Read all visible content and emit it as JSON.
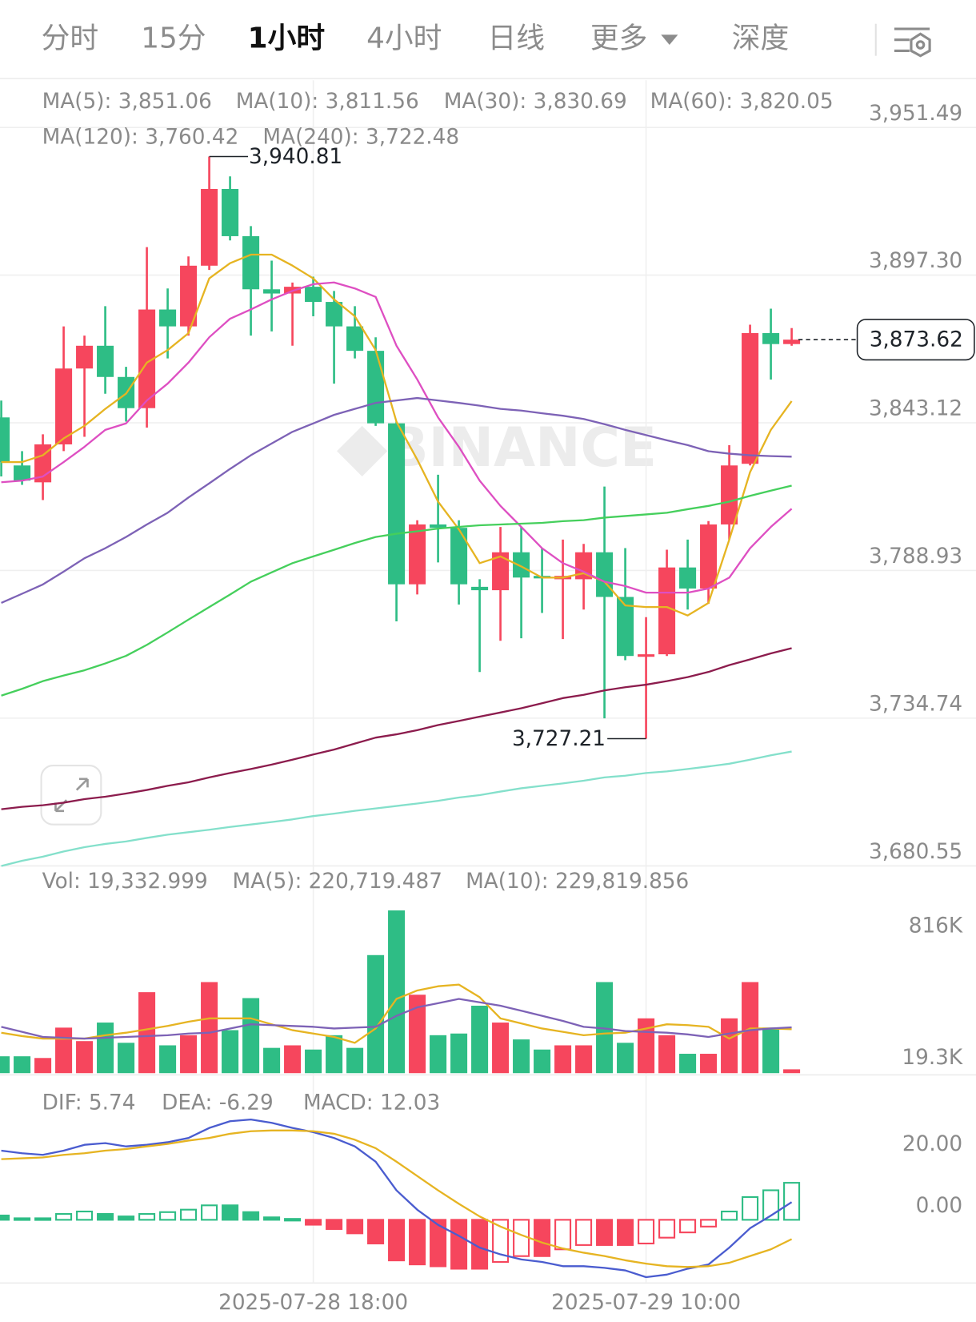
{
  "tabs": [
    "分时",
    "15分",
    "1小时",
    "4小时",
    "日线",
    "更多",
    "深度"
  ],
  "active_tab": 2,
  "watermark": "BINANCE",
  "chart_data": [
    {
      "type": "candlestick",
      "categories": [
        null,
        null,
        null,
        null,
        null,
        null,
        null,
        null,
        null,
        null,
        null,
        null,
        null,
        null,
        null,
        "2025-07-28 18:00",
        null,
        null,
        null,
        null,
        null,
        null,
        null,
        null,
        null,
        null,
        null,
        null,
        null,
        null,
        null,
        "2025-07-29 10:00",
        null,
        null,
        null,
        null,
        null,
        null,
        null
      ],
      "open": [
        3845.09,
        3827.46,
        3821.27,
        3835.19,
        3863.03,
        3871.38,
        3859.93,
        3848.49,
        3884.68,
        3878.49,
        3900.76,
        3928.91,
        3911.59,
        3892.1,
        3890.55,
        3893.03,
        3887.46,
        3878.49,
        3869.52,
        3842.92,
        3783.85,
        3805.81,
        3804.57,
        3782.92,
        3781.68,
        3795.6,
        3786.94,
        3785.7,
        3785.7,
        3795.6,
        3779.21,
        3757.25,
        3758.17,
        3790.03,
        3782.3,
        3805.81,
        3828.07,
        3876.02,
        3872.0
      ],
      "high": [
        3851.27,
        3832.71,
        3838.9,
        3878.49,
        3875.09,
        3885.91,
        3863.64,
        3907.57,
        3892.41,
        3904.16,
        3940.81,
        3933.55,
        3915.3,
        3902.62,
        3894.57,
        3896.74,
        3891.48,
        3885.91,
        3874.47,
        3843.54,
        3807.35,
        3824.05,
        3807.35,
        3785.7,
        3804.88,
        3804.88,
        3797.14,
        3800.24,
        3798.69,
        3819.72,
        3797.14,
        3771.78,
        3796.53,
        3800.24,
        3807.04,
        3834.88,
        3879.11,
        3884.99,
        3877.87
      ],
      "low": [
        3823.44,
        3820.34,
        3814.78,
        3832.71,
        3837.97,
        3853.75,
        3843.54,
        3841.37,
        3866.74,
        3875.09,
        3899.21,
        3910.04,
        3875.09,
        3876.64,
        3871.38,
        3882.2,
        3857.46,
        3866.74,
        3841.99,
        3770.24,
        3780.13,
        3791.89,
        3776.42,
        3751.68,
        3763.12,
        3764.05,
        3773.33,
        3763.74,
        3774.57,
        3734.67,
        3756.01,
        3727.21,
        3757.55,
        3774.57,
        3776.73,
        3800.24,
        3827.46,
        3859.0,
        3871.38
      ],
      "close": [
        3828.69,
        3821.89,
        3835.19,
        3863.03,
        3871.38,
        3859.93,
        3848.49,
        3884.68,
        3878.49,
        3900.76,
        3928.91,
        3911.59,
        3892.1,
        3890.55,
        3893.03,
        3887.46,
        3878.49,
        3869.52,
        3842.92,
        3783.85,
        3805.81,
        3804.57,
        3783.85,
        3781.68,
        3795.6,
        3786.32,
        3786.01,
        3786.94,
        3795.6,
        3779.21,
        3757.55,
        3758.17,
        3790.03,
        3782.3,
        3805.81,
        3827.46,
        3876.02,
        3872.0,
        3873.62
      ],
      "up_color": "#f6465d",
      "down_color": "#2ebd85",
      "ylim": [
        3680.55,
        3968.8
      ],
      "yticks": [
        {
          "value": 3951.49,
          "label": "3,951.49"
        },
        {
          "value": 3897.3,
          "label": "3,897.30"
        },
        {
          "value": 3843.12,
          "label": "3,843.12"
        },
        {
          "value": 3788.93,
          "label": "3,788.93"
        },
        {
          "value": 3734.74,
          "label": "3,734.74"
        },
        {
          "value": 3680.55,
          "label": "3,680.55"
        }
      ],
      "grid": true,
      "high_label": "3,940.81",
      "low_label": "3,727.21",
      "last_label": "3,873.62",
      "series": [
        {
          "name": "MA(5): 3,851.06",
          "color": "#e6b422",
          "values": [
            3828.7,
            3828.7,
            3831.2,
            3837.4,
            3842.0,
            3848.2,
            3853.8,
            3865.2,
            3869.8,
            3876.0,
            3896.1,
            3901.7,
            3904.8,
            3904.8,
            3900.8,
            3896.1,
            3888.4,
            3882.2,
            3869.8,
            3843.5,
            3829.6,
            3814.2,
            3804.0,
            3791.6,
            3794.1,
            3790.4,
            3786.3,
            3786.3,
            3787.9,
            3784.8,
            3776.1,
            3775.5,
            3775.5,
            3772.4,
            3777.0,
            3800.2,
            3825.0,
            3840.5,
            3851.06
          ]
        },
        {
          "name": "MA(10): 3,811.56",
          "color": "#de4fc2",
          "values": [
            3821.3,
            3821.9,
            3823.4,
            3828.7,
            3834.3,
            3840.5,
            3842.9,
            3851.3,
            3857.5,
            3865.2,
            3874.5,
            3881.3,
            3884.7,
            3888.4,
            3891.5,
            3894.0,
            3894.6,
            3892.4,
            3889.3,
            3871.4,
            3859.0,
            3845.1,
            3834.3,
            3821.9,
            3812.6,
            3804.9,
            3797.1,
            3791.6,
            3788.5,
            3784.8,
            3783.2,
            3780.8,
            3780.8,
            3780.8,
            3782.3,
            3786.3,
            3797.1,
            3804.9,
            3811.56
          ]
        },
        {
          "name": "MA(30): 3,830.69",
          "color": "#7d62b6",
          "values": [
            3777.0,
            3780.4,
            3783.8,
            3788.5,
            3793.4,
            3797.1,
            3801.2,
            3805.8,
            3810.1,
            3815.7,
            3820.9,
            3826.2,
            3831.2,
            3835.5,
            3839.8,
            3842.9,
            3846.0,
            3848.2,
            3850.4,
            3851.3,
            3852.2,
            3851.3,
            3850.4,
            3849.4,
            3848.2,
            3847.6,
            3846.6,
            3845.7,
            3844.5,
            3842.6,
            3840.5,
            3838.6,
            3836.7,
            3834.9,
            3832.7,
            3831.8,
            3831.2,
            3830.9,
            3830.69
          ]
        },
        {
          "name": "MA(60): 3,820.05",
          "color": "#45cf5c",
          "values": [
            3743.0,
            3745.5,
            3748.3,
            3750.4,
            3752.3,
            3754.8,
            3757.6,
            3761.6,
            3766.2,
            3770.9,
            3775.5,
            3780.1,
            3784.8,
            3788.2,
            3791.6,
            3794.1,
            3796.5,
            3799.0,
            3801.2,
            3802.4,
            3803.3,
            3804.3,
            3804.9,
            3805.5,
            3805.8,
            3806.1,
            3806.4,
            3807.0,
            3807.4,
            3808.3,
            3808.9,
            3809.5,
            3810.1,
            3811.4,
            3812.6,
            3814.2,
            3816.3,
            3818.2,
            3820.05
          ]
        },
        {
          "name": "MA(120): 3,760.42",
          "color": "#8c1c4d",
          "values": [
            3701.3,
            3702.2,
            3702.8,
            3703.7,
            3705.0,
            3705.9,
            3707.1,
            3708.4,
            3709.9,
            3711.2,
            3713.0,
            3714.6,
            3716.1,
            3717.7,
            3719.5,
            3721.4,
            3723.2,
            3725.4,
            3727.6,
            3728.8,
            3730.3,
            3732.2,
            3733.7,
            3735.3,
            3736.8,
            3738.4,
            3740.2,
            3742.1,
            3743.3,
            3744.9,
            3746.1,
            3747.0,
            3748.3,
            3749.8,
            3751.7,
            3754.2,
            3756.3,
            3758.5,
            3760.42
          ]
        },
        {
          "name": "MA(240): 3,722.48",
          "color": "#84e0cb",
          "values": [
            3680.5,
            3682.4,
            3683.9,
            3685.8,
            3687.4,
            3688.6,
            3689.5,
            3690.8,
            3692.0,
            3692.9,
            3693.8,
            3694.8,
            3695.7,
            3696.6,
            3697.6,
            3698.8,
            3699.7,
            3700.7,
            3701.6,
            3702.5,
            3703.4,
            3704.4,
            3705.6,
            3706.5,
            3707.8,
            3709.0,
            3709.9,
            3710.8,
            3711.8,
            3713.0,
            3713.6,
            3714.6,
            3715.2,
            3716.1,
            3717.0,
            3718.0,
            3719.5,
            3721.1,
            3722.48
          ]
        }
      ]
    },
    {
      "type": "bar",
      "name": "Vol: 19,332.999",
      "values": [
        84600,
        84600,
        76100,
        228300,
        160700,
        253700,
        152200,
        405900,
        139500,
        190300,
        456600,
        215600,
        376300,
        126800,
        139500,
        118400,
        190300,
        126800,
        591900,
        816000,
        393200,
        190300,
        198700,
        338200,
        253700,
        169100,
        118400,
        139500,
        139500,
        456600,
        152200,
        274800,
        190300,
        97200,
        97200,
        274800,
        456600,
        228300,
        19332.999
      ],
      "ylim": [
        0,
        900000
      ],
      "yticks": [
        {
          "value": 816000,
          "label": "816K"
        },
        {
          "value": 19300,
          "label": "19.3K"
        }
      ],
      "grid": false,
      "series": [
        {
          "name": "MA(5): 220,719.487",
          "color": "#e6b422",
          "values": [
            202900,
            186000,
            173300,
            173300,
            173300,
            190300,
            202900,
            219900,
            236800,
            257900,
            274800,
            274800,
            274800,
            245200,
            215600,
            198700,
            181800,
            152200,
            224100,
            372100,
            414300,
            435500,
            443900,
            380500,
            274800,
            249500,
            224100,
            207200,
            190300,
            198700,
            202900,
            224100,
            245200,
            241000,
            232500,
            173300,
            224100,
            224100,
            220719.487
          ]
        },
        {
          "name": "MA(10): 229,819.856",
          "color": "#7d62b6",
          "values": [
            232500,
            207200,
            181800,
            177600,
            173300,
            177600,
            181800,
            186000,
            190300,
            198700,
            202900,
            224100,
            245200,
            241000,
            236800,
            232500,
            224100,
            228300,
            232500,
            287500,
            329800,
            350900,
            372100,
            355200,
            338200,
            312900,
            287500,
            262100,
            232500,
            224100,
            211400,
            207200,
            202900,
            194500,
            181800,
            198700,
            215600,
            224100,
            229819.856
          ]
        }
      ]
    },
    {
      "type": "macd",
      "ylim": [
        -20.55,
        43.0
      ],
      "yticks": [
        {
          "value": 20,
          "label": "20.00"
        },
        {
          "value": 0,
          "label": "0.00"
        }
      ],
      "grid": false,
      "histogram": {
        "name": "MACD: 12.03",
        "up_color": "#2ebd85",
        "down_color": "#f6465d",
        "values": [
          1.4,
          0.5,
          0.5,
          1.9,
          2.7,
          1.9,
          1.1,
          1.9,
          2.5,
          3.3,
          4.7,
          4.7,
          2.5,
          0.8,
          0.3,
          -1.6,
          -3.0,
          -4.4,
          -7.7,
          -13.2,
          -14.5,
          -15.1,
          -15.9,
          -15.9,
          -13.7,
          -11.8,
          -11.8,
          -9.6,
          -8.2,
          -8.2,
          -8.2,
          -7.7,
          -5.8,
          -4.1,
          -2.2,
          2.7,
          7.4,
          9.6,
          12.03
        ]
      },
      "series": [
        {
          "name": "DIF: 5.74",
          "color": "#4a5ccf",
          "values": [
            22.47,
            21.64,
            21.1,
            22.47,
            24.38,
            24.93,
            23.84,
            24.38,
            25.21,
            26.58,
            29.86,
            32.05,
            32.6,
            31.51,
            29.86,
            28.49,
            26.58,
            23.84,
            18.9,
            9.59,
            3.29,
            -1.64,
            -5.21,
            -9.04,
            -11.23,
            -12.88,
            -13.7,
            -15.07,
            -15.07,
            -15.62,
            -16.44,
            -18.63,
            -17.81,
            -15.89,
            -14.52,
            -9.04,
            -2.74,
            1.37,
            5.74
          ]
        },
        {
          "name": "DEA: -6.29",
          "color": "#e6b422",
          "values": [
            19.73,
            20.0,
            20.27,
            21.1,
            21.64,
            22.47,
            23.01,
            23.84,
            24.66,
            25.75,
            26.58,
            27.95,
            28.77,
            29.04,
            29.04,
            28.77,
            27.95,
            26.03,
            23.29,
            18.9,
            14.25,
            9.59,
            5.21,
            1.1,
            -2.19,
            -4.93,
            -7.4,
            -9.32,
            -10.68,
            -11.78,
            -13.15,
            -14.25,
            -15.07,
            -15.34,
            -15.07,
            -13.97,
            -11.78,
            -9.59,
            -6.29
          ]
        }
      ]
    }
  ]
}
